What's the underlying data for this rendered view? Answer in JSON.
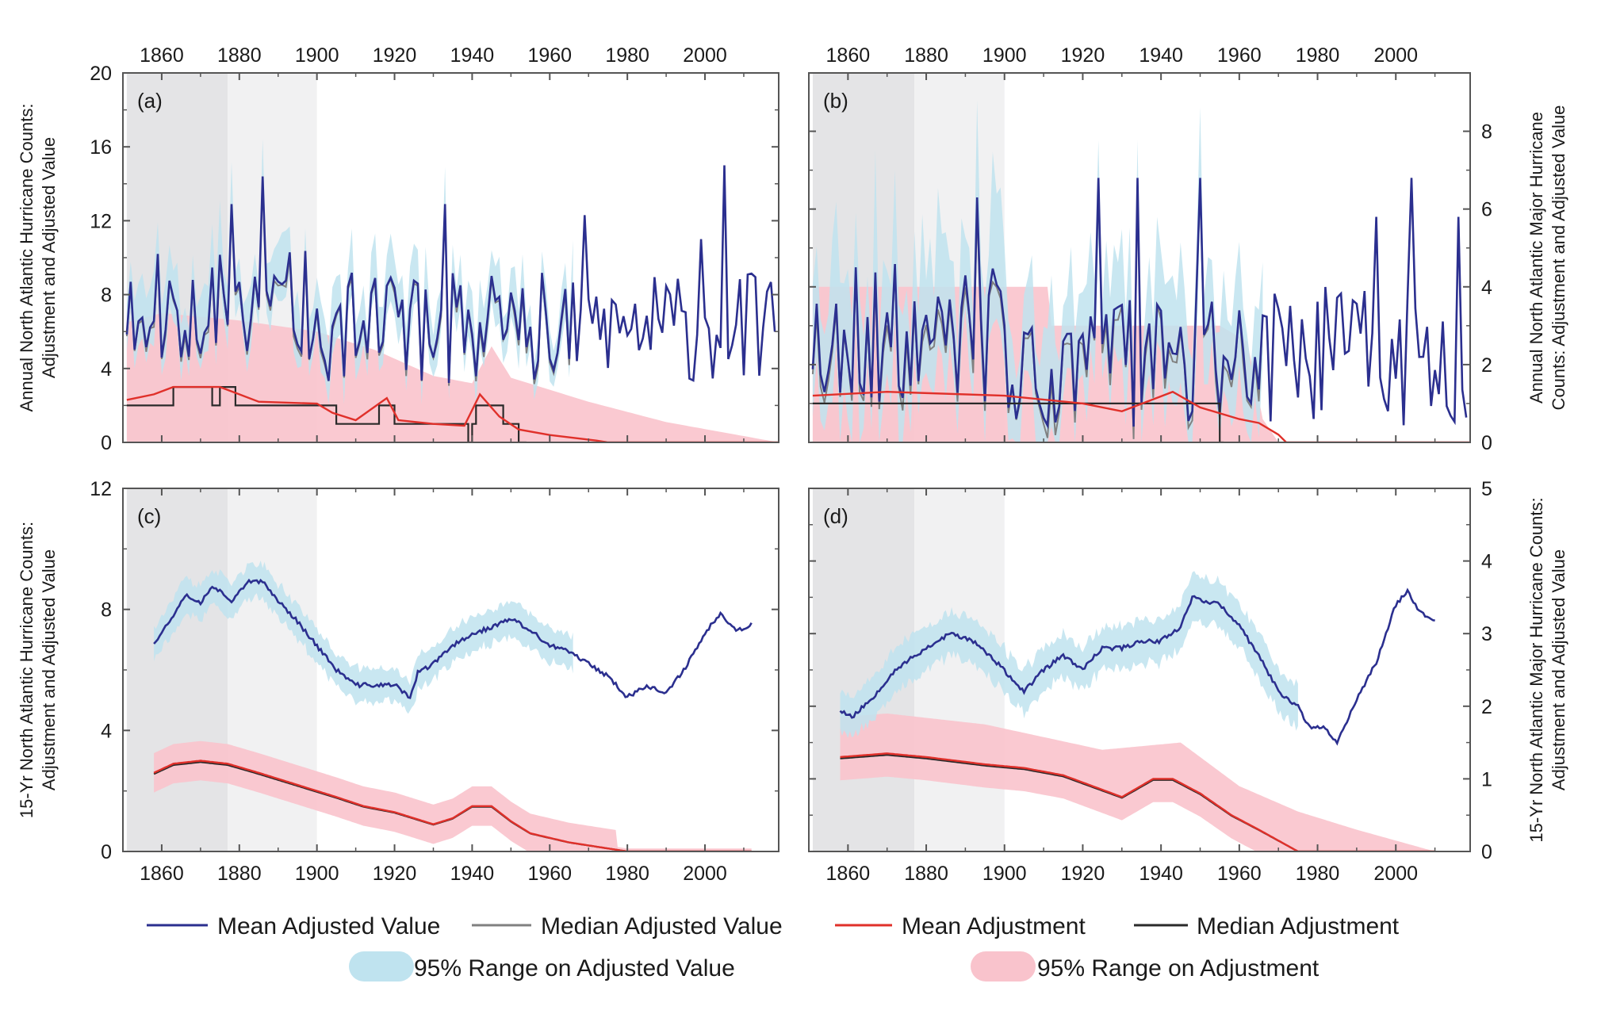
{
  "chart_data": [
    {
      "panel_label": "(a)",
      "type": "line",
      "ylabel": [
        "Annual North Atlantic Hurricane Counts:",
        "Adjustment and Adjusted Value"
      ],
      "xlim": [
        1850,
        2019
      ],
      "ylim": [
        0,
        20
      ],
      "xticks": [
        1860,
        1880,
        1900,
        1920,
        1940,
        1960,
        1980,
        2000
      ],
      "yticks": [
        0,
        4,
        8,
        12,
        16,
        20
      ],
      "axis_side": "left",
      "shaded_periods": [
        [
          1851,
          1877
        ],
        [
          1877,
          1900
        ]
      ],
      "generator": "annual",
      "series_params": {
        "mean_adjusted": {
          "base": 6.2,
          "amp": 3.0,
          "early_boost": 1.2,
          "peaks": [
            [
              1886,
              14.4
            ],
            [
              1878,
              12.9
            ],
            [
              1933,
              12.9
            ],
            [
              1969,
              12.3
            ],
            [
              2005,
              15.0
            ],
            [
              1999,
              11.0
            ]
          ]
        },
        "mean_adjustment": [
          [
            1851,
            2.3
          ],
          [
            1858,
            2.6
          ],
          [
            1863,
            3.0
          ],
          [
            1875,
            3.0
          ],
          [
            1880,
            2.6
          ],
          [
            1885,
            2.2
          ],
          [
            1900,
            2.1
          ],
          [
            1904,
            1.6
          ],
          [
            1910,
            1.2
          ],
          [
            1918,
            2.4
          ],
          [
            1921,
            1.2
          ],
          [
            1930,
            1.0
          ],
          [
            1938,
            0.9
          ],
          [
            1942,
            2.6
          ],
          [
            1947,
            1.4
          ],
          [
            1952,
            0.7
          ],
          [
            1960,
            0.4
          ],
          [
            1972,
            0.1
          ],
          [
            1975,
            0.0
          ],
          [
            2019,
            0.0
          ]
        ],
        "median_adjustment": [
          [
            1851,
            2.0
          ],
          [
            1862,
            2.0
          ],
          [
            1863,
            3.0
          ],
          [
            1872,
            3.0
          ],
          [
            1873,
            2.0
          ],
          [
            1875,
            3.0
          ],
          [
            1878,
            3.0
          ],
          [
            1879,
            2.0
          ],
          [
            1904,
            2.0
          ],
          [
            1905,
            1.0
          ],
          [
            1915,
            1.0
          ],
          [
            1916,
            2.0
          ],
          [
            1919,
            2.0
          ],
          [
            1920,
            1.0
          ],
          [
            1938,
            1.0
          ],
          [
            1939,
            0.0
          ],
          [
            1940,
            1.0
          ],
          [
            1941,
            2.0
          ],
          [
            1946,
            2.0
          ],
          [
            1948,
            1.0
          ],
          [
            1950,
            1.0
          ],
          [
            1952,
            0.0
          ],
          [
            1954,
            0.0
          ]
        ],
        "adjusted_band_end": 1966,
        "adjustment_band_upper": [
          [
            1851,
            6.5
          ],
          [
            1860,
            7.0
          ],
          [
            1880,
            6.6
          ],
          [
            1900,
            6.0
          ],
          [
            1915,
            5.0
          ],
          [
            1930,
            3.6
          ],
          [
            1940,
            3.2
          ],
          [
            1945,
            5.2
          ],
          [
            1950,
            3.5
          ],
          [
            1970,
            2.2
          ],
          [
            1990,
            1.1
          ],
          [
            2019,
            0.0
          ]
        ],
        "adjustment_band_lower": [
          [
            1851,
            0.0
          ],
          [
            2019,
            0.0
          ]
        ]
      },
      "seed": 11
    },
    {
      "panel_label": "(b)",
      "type": "line",
      "ylabel": [
        "Annual North Atlantic Major Hurricane",
        "Counts: Adjustment and Adjusted Value"
      ],
      "xlim": [
        1850,
        2019
      ],
      "ylim": [
        0,
        9.5
      ],
      "xticks": [
        1860,
        1880,
        1900,
        1920,
        1940,
        1960,
        1980,
        2000
      ],
      "yticks": [
        0,
        2,
        4,
        6,
        8
      ],
      "axis_side": "right",
      "shaded_periods": [
        [
          1851,
          1877
        ],
        [
          1877,
          1900
        ]
      ],
      "generator": "annual",
      "series_params": {
        "mean_adjusted": {
          "base": 2.2,
          "amp": 1.8,
          "early_boost": 0.6,
          "peaks": [
            [
              1893,
              6.3
            ],
            [
              1924,
              6.8
            ],
            [
              1934,
              6.8
            ],
            [
              1950,
              6.8
            ],
            [
              2004,
              6.8
            ],
            [
              1995,
              5.8
            ],
            [
              2016,
              5.8
            ]
          ]
        },
        "mean_adjustment": [
          [
            1851,
            1.2
          ],
          [
            1870,
            1.3
          ],
          [
            1900,
            1.2
          ],
          [
            1920,
            1.0
          ],
          [
            1930,
            0.8
          ],
          [
            1943,
            1.3
          ],
          [
            1950,
            0.9
          ],
          [
            1960,
            0.6
          ],
          [
            1965,
            0.5
          ],
          [
            1970,
            0.2
          ],
          [
            1972,
            0.0
          ],
          [
            2019,
            0.0
          ]
        ],
        "median_adjustment": [
          [
            1851,
            1.0
          ],
          [
            1954,
            1.0
          ],
          [
            1955,
            0.0
          ],
          [
            1956,
            0.0
          ]
        ],
        "adjusted_band_end": 1966,
        "adjustment_band_upper": [
          [
            1851,
            4.0
          ],
          [
            1900,
            4.0
          ],
          [
            1911,
            4.0
          ],
          [
            1912,
            3.0
          ],
          [
            1955,
            3.0
          ],
          [
            1962,
            2.6
          ],
          [
            1966,
            0.6
          ],
          [
            1970,
            0.0
          ],
          [
            2019,
            0.0
          ]
        ],
        "adjustment_band_lower": [
          [
            1851,
            0.0
          ],
          [
            2019,
            0.0
          ]
        ]
      },
      "seed": 23
    },
    {
      "panel_label": "(c)",
      "type": "line",
      "ylabel": [
        "15-Yr North Atlantic Hurricane Counts:",
        "Adjustment and Adjusted Value"
      ],
      "xlim": [
        1850,
        2019
      ],
      "ylim": [
        0,
        12
      ],
      "xticks": [
        1860,
        1880,
        1900,
        1920,
        1940,
        1960,
        1980,
        2000
      ],
      "yticks": [
        0,
        4,
        8,
        12
      ],
      "axis_side": "left",
      "shaded_periods": [
        [
          1851,
          1877
        ],
        [
          1877,
          1900
        ]
      ],
      "generator": "smooth",
      "series_params": {
        "mean_adjusted": [
          [
            1858,
            6.9
          ],
          [
            1862,
            7.6
          ],
          [
            1866,
            8.5
          ],
          [
            1870,
            8.2
          ],
          [
            1873,
            8.8
          ],
          [
            1878,
            8.3
          ],
          [
            1882,
            8.9
          ],
          [
            1886,
            8.9
          ],
          [
            1890,
            8.3
          ],
          [
            1895,
            7.6
          ],
          [
            1900,
            6.8
          ],
          [
            1905,
            6.0
          ],
          [
            1910,
            5.5
          ],
          [
            1915,
            5.5
          ],
          [
            1920,
            5.5
          ],
          [
            1924,
            5.1
          ],
          [
            1926,
            5.9
          ],
          [
            1930,
            6.2
          ],
          [
            1935,
            6.8
          ],
          [
            1940,
            7.2
          ],
          [
            1945,
            7.4
          ],
          [
            1950,
            7.7
          ],
          [
            1955,
            7.3
          ],
          [
            1960,
            6.8
          ],
          [
            1965,
            6.6
          ],
          [
            1970,
            6.2
          ],
          [
            1975,
            5.8
          ],
          [
            1980,
            5.1
          ],
          [
            1985,
            5.5
          ],
          [
            1990,
            5.2
          ],
          [
            1995,
            6.1
          ],
          [
            2000,
            7.2
          ],
          [
            2004,
            7.9
          ],
          [
            2008,
            7.3
          ],
          [
            2012,
            7.5
          ]
        ],
        "mean_adjustment": [
          [
            1858,
            2.6
          ],
          [
            1863,
            2.9
          ],
          [
            1870,
            3.0
          ],
          [
            1877,
            2.9
          ],
          [
            1885,
            2.6
          ],
          [
            1895,
            2.2
          ],
          [
            1905,
            1.8
          ],
          [
            1912,
            1.5
          ],
          [
            1920,
            1.3
          ],
          [
            1930,
            0.9
          ],
          [
            1935,
            1.1
          ],
          [
            1940,
            1.5
          ],
          [
            1945,
            1.5
          ],
          [
            1950,
            1.0
          ],
          [
            1955,
            0.6
          ],
          [
            1965,
            0.3
          ],
          [
            1975,
            0.1
          ],
          [
            1980,
            0.0
          ],
          [
            2012,
            0.0
          ]
        ],
        "adjusted_halfwidth": 0.55,
        "adjustment_halfwidth": 0.65
      },
      "seed": 37
    },
    {
      "panel_label": "(d)",
      "type": "line",
      "ylabel": [
        "15-Yr North Atlantic Major Hurricane Counts:",
        "Adjustment and Adjusted Value"
      ],
      "xlim": [
        1850,
        2019
      ],
      "ylim": [
        0,
        5
      ],
      "xticks": [
        1860,
        1880,
        1900,
        1920,
        1940,
        1960,
        1980,
        2000
      ],
      "yticks": [
        0,
        1,
        2,
        3,
        4,
        5
      ],
      "axis_side": "right",
      "shaded_periods": [
        [
          1851,
          1877
        ],
        [
          1877,
          1900
        ]
      ],
      "generator": "smooth",
      "series_params": {
        "mean_adjusted": [
          [
            1858,
            1.95
          ],
          [
            1861,
            1.85
          ],
          [
            1866,
            2.1
          ],
          [
            1872,
            2.5
          ],
          [
            1880,
            2.8
          ],
          [
            1886,
            3.0
          ],
          [
            1892,
            2.9
          ],
          [
            1898,
            2.6
          ],
          [
            1905,
            2.2
          ],
          [
            1910,
            2.5
          ],
          [
            1915,
            2.7
          ],
          [
            1920,
            2.5
          ],
          [
            1925,
            2.8
          ],
          [
            1930,
            2.8
          ],
          [
            1935,
            2.9
          ],
          [
            1940,
            2.9
          ],
          [
            1945,
            3.1
          ],
          [
            1948,
            3.5
          ],
          [
            1955,
            3.4
          ],
          [
            1960,
            3.1
          ],
          [
            1965,
            2.7
          ],
          [
            1970,
            2.2
          ],
          [
            1975,
            2.0
          ],
          [
            1978,
            1.7
          ],
          [
            1982,
            1.7
          ],
          [
            1985,
            1.5
          ],
          [
            1990,
            2.1
          ],
          [
            1995,
            2.6
          ],
          [
            2000,
            3.4
          ],
          [
            2003,
            3.6
          ],
          [
            2006,
            3.3
          ],
          [
            2010,
            3.2
          ]
        ],
        "mean_adjustment": [
          [
            1858,
            1.3
          ],
          [
            1870,
            1.35
          ],
          [
            1880,
            1.3
          ],
          [
            1895,
            1.2
          ],
          [
            1905,
            1.15
          ],
          [
            1915,
            1.05
          ],
          [
            1925,
            0.85
          ],
          [
            1930,
            0.75
          ],
          [
            1938,
            1.0
          ],
          [
            1943,
            1.0
          ],
          [
            1950,
            0.8
          ],
          [
            1958,
            0.5
          ],
          [
            1965,
            0.3
          ],
          [
            1970,
            0.15
          ],
          [
            1975,
            0.0
          ],
          [
            2010,
            0.0
          ]
        ],
        "adjusted_halfwidth": 0.3,
        "adjustment_halfwidth": 0.32,
        "adjusted_band_end": 1975,
        "adjustment_band_upper": [
          [
            1858,
            1.85
          ],
          [
            1870,
            1.9
          ],
          [
            1895,
            1.75
          ],
          [
            1925,
            1.4
          ],
          [
            1945,
            1.5
          ],
          [
            1960,
            0.9
          ],
          [
            1975,
            0.55
          ],
          [
            1990,
            0.3
          ],
          [
            2010,
            0.0
          ]
        ]
      },
      "seed": 53
    }
  ],
  "legend": {
    "mean_adjusted_value": "Mean Adjusted Value",
    "median_adjusted_value": "Median Adjusted Value",
    "mean_adjustment": "Mean Adjustment",
    "median_adjustment": "Median Adjustment",
    "range_adjusted_value": "95% Range on Adjusted Value",
    "range_adjustment": "95% Range on Adjustment"
  },
  "colors": {
    "mean_adjusted_value": "#2b2f8f",
    "median_adjusted_value": "#808080",
    "mean_adjustment": "#e0302a",
    "median_adjustment": "#2a2a2a",
    "range_adjusted_value": "#bfe3ef",
    "range_adjustment": "#f9c3cc",
    "shade_dark": "#e4e4e6",
    "shade_light": "#f1f1f2",
    "frame": "#555555"
  }
}
